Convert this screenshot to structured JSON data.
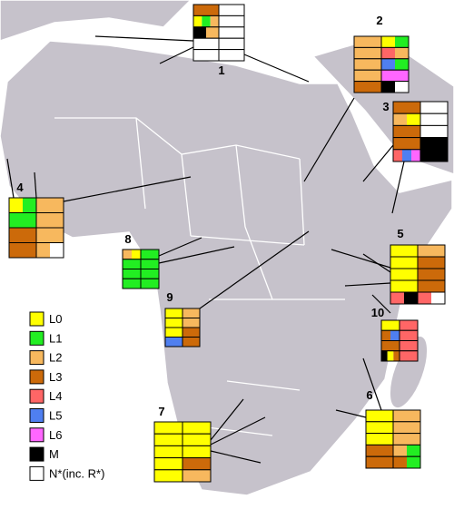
{
  "legend": [
    {
      "label": "L0",
      "color": "#ffff00"
    },
    {
      "label": "L1",
      "color": "#22ee22"
    },
    {
      "label": "L2",
      "color": "#f7b85e"
    },
    {
      "label": "L3",
      "color": "#cc6a0a"
    },
    {
      "label": "L4",
      "color": "#ff6666"
    },
    {
      "label": "L5",
      "color": "#4f7ff0"
    },
    {
      "label": "L6",
      "color": "#ff66ff"
    },
    {
      "label": "M",
      "color": "#000000"
    },
    {
      "label": "N*(inc. R*)",
      "color": "#ffffff"
    }
  ],
  "regions": [
    {
      "label": "1"
    },
    {
      "label": "2"
    },
    {
      "label": "3"
    },
    {
      "label": "4"
    },
    {
      "label": "5"
    },
    {
      "label": "6"
    },
    {
      "label": "7"
    },
    {
      "label": "8"
    },
    {
      "label": "9"
    },
    {
      "label": "10"
    }
  ]
}
